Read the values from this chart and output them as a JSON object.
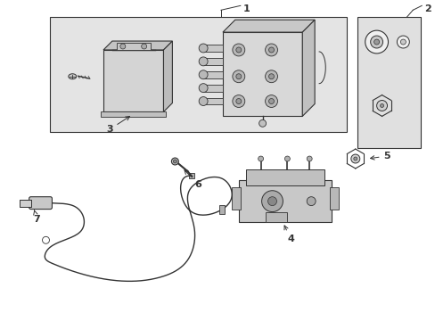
{
  "bg_color": "#ffffff",
  "line_color": "#333333",
  "platform_color": "#e8e8e8",
  "part_color": "#d0d0d0",
  "bracket2_color": "#e0e0e0"
}
